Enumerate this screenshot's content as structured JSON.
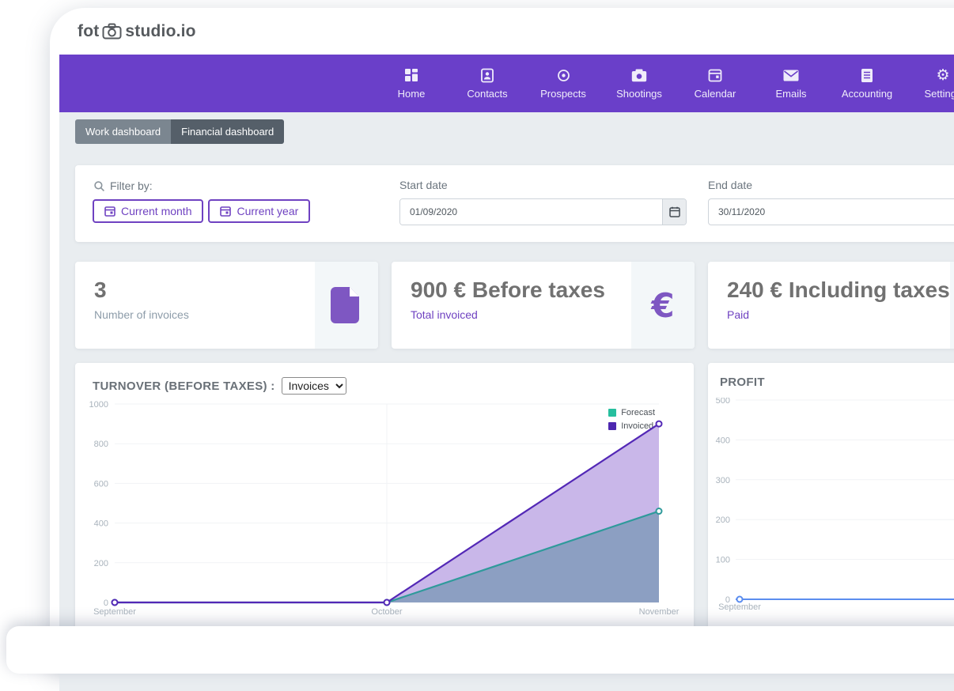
{
  "brand": {
    "name_prefix": "fot",
    "name_suffix": "studio.io"
  },
  "nav": {
    "bg_color": "#6a3fc9",
    "items": [
      {
        "label": "Home",
        "icon": "home-grid-icon"
      },
      {
        "label": "Contacts",
        "icon": "contact-badge-icon"
      },
      {
        "label": "Prospects",
        "icon": "target-icon"
      },
      {
        "label": "Shootings",
        "icon": "camera-icon"
      },
      {
        "label": "Calendar",
        "icon": "calendar-icon"
      },
      {
        "label": "Emails",
        "icon": "envelope-icon"
      },
      {
        "label": "Accounting",
        "icon": "ledger-icon"
      },
      {
        "label": "Settings",
        "icon": "gear-icon"
      }
    ]
  },
  "tabs": [
    {
      "label": "Work dashboard",
      "active": false
    },
    {
      "label": "Financial dashboard",
      "active": true
    }
  ],
  "filter": {
    "title": "Filter by:",
    "quick_buttons": [
      "Current month",
      "Current year"
    ],
    "start_date": {
      "label": "Start date",
      "value": "01/09/2020"
    },
    "end_date": {
      "label": "End date",
      "value": "30/11/2020"
    }
  },
  "stats": [
    {
      "value": "3",
      "label": "Number of invoices",
      "icon": "invoice-file-icon"
    },
    {
      "value": "900 € Before taxes",
      "label": "Total invoiced",
      "icon": "euro-icon",
      "icon_glyph": "€"
    },
    {
      "value": "240 € Including taxes",
      "label": "Paid",
      "icon": "wallet-icon"
    }
  ],
  "chart_data": [
    {
      "type": "area",
      "title": "TURNOVER (BEFORE TAXES) :",
      "selector_value": "Invoices",
      "categories": [
        "September",
        "October",
        "November"
      ],
      "series": [
        {
          "name": "Forecast",
          "values": [
            0,
            0,
            460
          ],
          "line_color": "#2f9a9b",
          "fill_color": "#8c9fc2",
          "legend_color": "#26bf9e"
        },
        {
          "name": "Invoiced",
          "values": [
            0,
            0,
            900
          ],
          "line_color": "#5328b6",
          "fill_color": "#c9b7e9",
          "legend_color": "#4d28b0"
        }
      ],
      "ylim": [
        0,
        1000
      ],
      "yticks": [
        0,
        200,
        400,
        600,
        800,
        1000
      ],
      "legend_position": "top-right",
      "grid": "horizontal"
    },
    {
      "type": "line",
      "title": "PROFIT",
      "categories": [
        "September"
      ],
      "series": [
        {
          "name": "Profit",
          "values": [
            0
          ],
          "line_color": "#5b8def"
        }
      ],
      "ylim": [
        0,
        500
      ],
      "yticks": [
        0,
        100,
        200,
        300,
        400,
        500
      ],
      "grid": "horizontal"
    }
  ]
}
